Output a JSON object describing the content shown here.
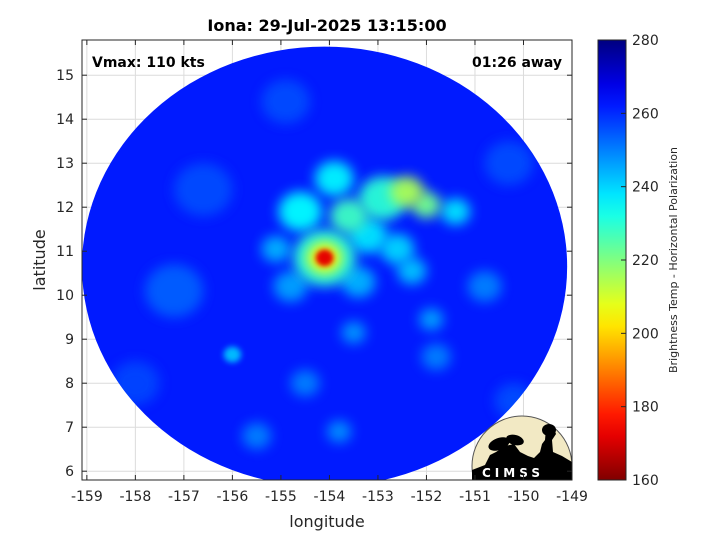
{
  "chart_data": {
    "type": "heatmap",
    "title": "Iona: 29-Jul-2025 13:15:00",
    "annotations": {
      "left": "Vmax: 110 kts",
      "right": "01:26 away"
    },
    "xlabel": "longitude",
    "ylabel": "latitude",
    "xlim": [
      -159.1,
      -149
    ],
    "ylim": [
      5.8,
      15.8
    ],
    "xticks": [
      -159,
      -158,
      -157,
      -156,
      -155,
      -154,
      -153,
      -152,
      -151,
      -150,
      -149
    ],
    "yticks": [
      6,
      7,
      8,
      9,
      10,
      11,
      12,
      13,
      14,
      15
    ],
    "grid": true,
    "colorbar": {
      "label": "Brightness Temp - Horizontal Polarization",
      "range": [
        160,
        280
      ],
      "ticks": [
        160,
        180,
        200,
        220,
        240,
        260,
        280
      ],
      "colormap": "jet"
    },
    "swath": {
      "center_lon": -154.1,
      "center_lat": 10.65,
      "radius_deg": 5.0,
      "background_bt": 262
    },
    "storm": {
      "eye_lon": -154.1,
      "eye_lat": 10.85,
      "min_bt": 172
    },
    "features": [
      {
        "lon": -154.1,
        "lat": 10.85,
        "bt": 172,
        "r": 0.18
      },
      {
        "lon": -154.1,
        "lat": 10.85,
        "bt": 205,
        "r": 0.35
      },
      {
        "lon": -154.1,
        "lat": 10.85,
        "bt": 230,
        "r": 0.65
      },
      {
        "lon": -152.4,
        "lat": 12.35,
        "bt": 215,
        "r": 0.35
      },
      {
        "lon": -152.0,
        "lat": 12.05,
        "bt": 222,
        "r": 0.3
      },
      {
        "lon": -152.9,
        "lat": 12.2,
        "bt": 230,
        "r": 0.5
      },
      {
        "lon": -153.9,
        "lat": 12.65,
        "bt": 236,
        "r": 0.4
      },
      {
        "lon": -153.6,
        "lat": 11.8,
        "bt": 228,
        "r": 0.4
      },
      {
        "lon": -154.6,
        "lat": 11.9,
        "bt": 235,
        "r": 0.45
      },
      {
        "lon": -153.2,
        "lat": 11.35,
        "bt": 238,
        "r": 0.4
      },
      {
        "lon": -152.6,
        "lat": 11.05,
        "bt": 240,
        "r": 0.35
      },
      {
        "lon": -151.4,
        "lat": 11.9,
        "bt": 238,
        "r": 0.3
      },
      {
        "lon": -152.3,
        "lat": 10.55,
        "bt": 242,
        "r": 0.3
      },
      {
        "lon": -153.4,
        "lat": 10.3,
        "bt": 244,
        "r": 0.35
      },
      {
        "lon": -154.8,
        "lat": 10.2,
        "bt": 246,
        "r": 0.35
      },
      {
        "lon": -155.1,
        "lat": 11.05,
        "bt": 244,
        "r": 0.3
      },
      {
        "lon": -151.9,
        "lat": 9.45,
        "bt": 246,
        "r": 0.25
      },
      {
        "lon": -153.5,
        "lat": 9.15,
        "bt": 247,
        "r": 0.25
      },
      {
        "lon": -156.0,
        "lat": 8.65,
        "bt": 242,
        "r": 0.18
      },
      {
        "lon": -154.5,
        "lat": 8.0,
        "bt": 250,
        "r": 0.3
      },
      {
        "lon": -153.8,
        "lat": 6.9,
        "bt": 248,
        "r": 0.25
      },
      {
        "lon": -155.5,
        "lat": 6.8,
        "bt": 250,
        "r": 0.3
      },
      {
        "lon": -151.8,
        "lat": 8.6,
        "bt": 250,
        "r": 0.3
      },
      {
        "lon": -150.8,
        "lat": 10.2,
        "bt": 250,
        "r": 0.35
      },
      {
        "lon": -157.2,
        "lat": 10.1,
        "bt": 254,
        "r": 0.6
      },
      {
        "lon": -156.6,
        "lat": 12.4,
        "bt": 256,
        "r": 0.6
      },
      {
        "lon": -150.3,
        "lat": 13.0,
        "bt": 256,
        "r": 0.5
      },
      {
        "lon": -154.9,
        "lat": 14.4,
        "bt": 256,
        "r": 0.5
      },
      {
        "lon": -158.0,
        "lat": 8.0,
        "bt": 257,
        "r": 0.5
      },
      {
        "lon": -150.2,
        "lat": 7.6,
        "bt": 256,
        "r": 0.4
      }
    ]
  },
  "logo": {
    "text": "CIMSS"
  }
}
